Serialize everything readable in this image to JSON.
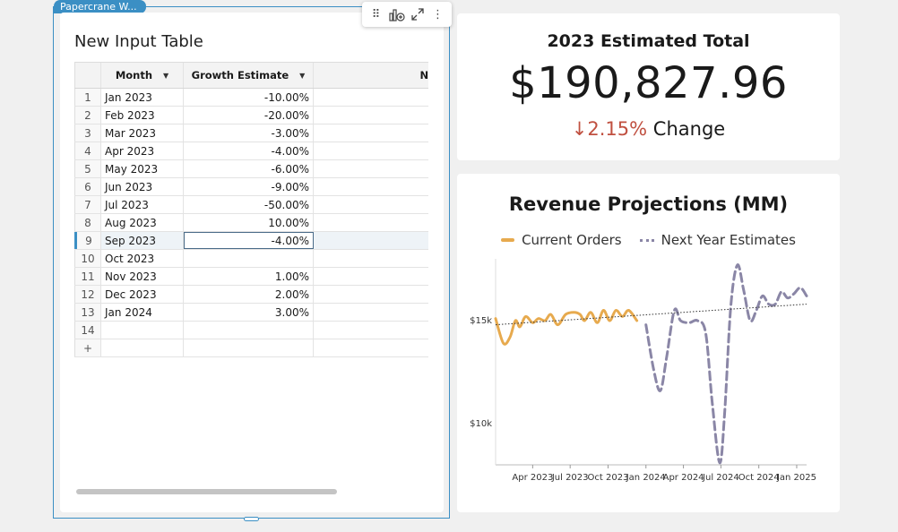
{
  "selection_tag": "Papercrane W...",
  "table": {
    "title": "New Input Table",
    "headers": {
      "month": "Month",
      "growth": "Growth Estimate",
      "next": "No"
    },
    "rows": [
      {
        "n": "1",
        "month": "Jan 2023",
        "growth": "-10.00%"
      },
      {
        "n": "2",
        "month": "Feb 2023",
        "growth": "-20.00%"
      },
      {
        "n": "3",
        "month": "Mar 2023",
        "growth": "-3.00%"
      },
      {
        "n": "4",
        "month": "Apr 2023",
        "growth": "-4.00%"
      },
      {
        "n": "5",
        "month": "May 2023",
        "growth": "-6.00%"
      },
      {
        "n": "6",
        "month": "Jun 2023",
        "growth": "-9.00%"
      },
      {
        "n": "7",
        "month": "Jul 2023",
        "growth": "-50.00%"
      },
      {
        "n": "8",
        "month": "Aug 2023",
        "growth": "10.00%"
      },
      {
        "n": "9",
        "month": "Sep 2023",
        "growth": "-4.00%"
      },
      {
        "n": "10",
        "month": "Oct 2023",
        "growth": ""
      },
      {
        "n": "11",
        "month": "Nov 2023",
        "growth": "1.00%"
      },
      {
        "n": "12",
        "month": "Dec 2023",
        "growth": "2.00%"
      },
      {
        "n": "13",
        "month": "Jan 2024",
        "growth": "3.00%"
      },
      {
        "n": "14",
        "month": "",
        "growth": ""
      },
      {
        "n": "+",
        "month": "",
        "growth": ""
      }
    ],
    "selected_row": 8
  },
  "toolbar": {
    "icons": [
      "drag-handle-icon",
      "add-chart-icon",
      "expand-icon",
      "more-options-icon"
    ]
  },
  "kpi": {
    "title": "2023 Estimated Total",
    "value": "$190,827.96",
    "arrow": "↓",
    "change_value": "2.15%",
    "change_label": "Change",
    "change_color": "#c05040"
  },
  "chart_data": {
    "type": "line",
    "title": "Revenue Projections (MM)",
    "legend": [
      "Current Orders",
      "Next Year Estimates"
    ],
    "legend_position": "top",
    "y_ticks": [
      "$15k",
      "$10k"
    ],
    "x_ticks": [
      "Apr 2023",
      "Jul 2023",
      "Oct 2023",
      "Jan 2024",
      "Apr 2024",
      "Jul 2024",
      "Oct 2024",
      "Jan 2025"
    ],
    "ylim": [
      8000,
      18000
    ],
    "series": [
      {
        "name": "Current Orders",
        "color": "#e7aa4e",
        "style": "solid",
        "points": [
          [
            "2023-01-01",
            15100
          ],
          [
            "2023-01-20",
            13900
          ],
          [
            "2023-02-05",
            14200
          ],
          [
            "2023-02-18",
            15000
          ],
          [
            "2023-03-01",
            14700
          ],
          [
            "2023-03-15",
            15200
          ],
          [
            "2023-04-01",
            14900
          ],
          [
            "2023-04-15",
            15100
          ],
          [
            "2023-05-01",
            15000
          ],
          [
            "2023-05-15",
            15300
          ],
          [
            "2023-06-01",
            14800
          ],
          [
            "2023-06-20",
            15300
          ],
          [
            "2023-07-10",
            15400
          ],
          [
            "2023-07-25",
            15300
          ],
          [
            "2023-08-05",
            15000
          ],
          [
            "2023-08-20",
            15400
          ],
          [
            "2023-09-05",
            14900
          ],
          [
            "2023-09-20",
            15500
          ],
          [
            "2023-10-05",
            15000
          ],
          [
            "2023-10-20",
            15500
          ],
          [
            "2023-11-05",
            15200
          ],
          [
            "2023-11-20",
            15500
          ],
          [
            "2023-12-10",
            15000
          ]
        ]
      },
      {
        "name": "Next Year Estimates",
        "color": "#8a86a6",
        "style": "dashed",
        "points": [
          [
            "2024-01-01",
            14800
          ],
          [
            "2024-01-20",
            12600
          ],
          [
            "2024-02-05",
            11600
          ],
          [
            "2024-02-20",
            13200
          ],
          [
            "2024-03-10",
            15500
          ],
          [
            "2024-03-25",
            15000
          ],
          [
            "2024-04-15",
            14900
          ],
          [
            "2024-05-05",
            15000
          ],
          [
            "2024-05-25",
            14400
          ],
          [
            "2024-06-10",
            11000
          ],
          [
            "2024-06-28",
            8100
          ],
          [
            "2024-07-10",
            10500
          ],
          [
            "2024-07-25",
            15700
          ],
          [
            "2024-08-10",
            17700
          ],
          [
            "2024-08-25",
            16500
          ],
          [
            "2024-09-10",
            15000
          ],
          [
            "2024-09-25",
            15500
          ],
          [
            "2024-10-10",
            16200
          ],
          [
            "2024-10-25",
            15800
          ],
          [
            "2024-11-10",
            15800
          ],
          [
            "2024-11-25",
            16400
          ],
          [
            "2024-12-10",
            16100
          ],
          [
            "2024-12-25",
            16300
          ],
          [
            "2025-01-10",
            16600
          ],
          [
            "2025-01-25",
            16200
          ]
        ]
      },
      {
        "name": "",
        "color": "#333333",
        "style": "trend",
        "points": [
          [
            "2023-01-01",
            14800
          ],
          [
            "2025-01-25",
            15800
          ]
        ]
      }
    ],
    "x_range": [
      "2023-01-01",
      "2025-01-25"
    ],
    "grid": false
  }
}
